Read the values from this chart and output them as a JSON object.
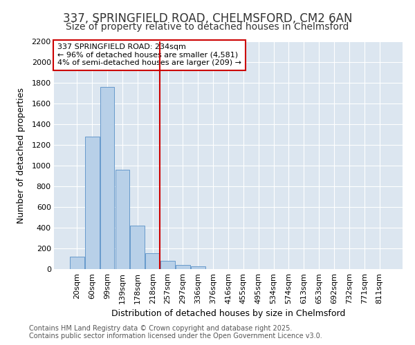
{
  "title_line1": "337, SPRINGFIELD ROAD, CHELMSFORD, CM2 6AN",
  "title_line2": "Size of property relative to detached houses in Chelmsford",
  "xlabel": "Distribution of detached houses by size in Chelmsford",
  "ylabel": "Number of detached properties",
  "categories": [
    "20sqm",
    "60sqm",
    "99sqm",
    "139sqm",
    "178sqm",
    "218sqm",
    "257sqm",
    "297sqm",
    "336sqm",
    "376sqm",
    "416sqm",
    "455sqm",
    "495sqm",
    "534sqm",
    "574sqm",
    "613sqm",
    "653sqm",
    "692sqm",
    "732sqm",
    "771sqm",
    "811sqm"
  ],
  "values": [
    120,
    1280,
    1760,
    960,
    420,
    155,
    80,
    40,
    25,
    0,
    0,
    0,
    0,
    0,
    0,
    0,
    0,
    0,
    0,
    0,
    0
  ],
  "bar_color": "#b8d0e8",
  "bar_edge_color": "#6699cc",
  "figure_bg": "#ffffff",
  "axes_bg": "#dce6f0",
  "grid_color": "#ffffff",
  "ylim": [
    0,
    2200
  ],
  "yticks": [
    0,
    200,
    400,
    600,
    800,
    1000,
    1200,
    1400,
    1600,
    1800,
    2000,
    2200
  ],
  "property_label": "337 SPRINGFIELD ROAD: 234sqm",
  "annotation_line1": "← 96% of detached houses are smaller (4,581)",
  "annotation_line2": "4% of semi-detached houses are larger (209) →",
  "vline_color": "#cc0000",
  "annotation_box_edge": "#cc0000",
  "footnote_line1": "Contains HM Land Registry data © Crown copyright and database right 2025.",
  "footnote_line2": "Contains public sector information licensed under the Open Government Licence v3.0.",
  "title1_fontsize": 12,
  "title2_fontsize": 10,
  "axis_label_fontsize": 9,
  "tick_fontsize": 8,
  "annotation_fontsize": 8,
  "footnote_fontsize": 7
}
